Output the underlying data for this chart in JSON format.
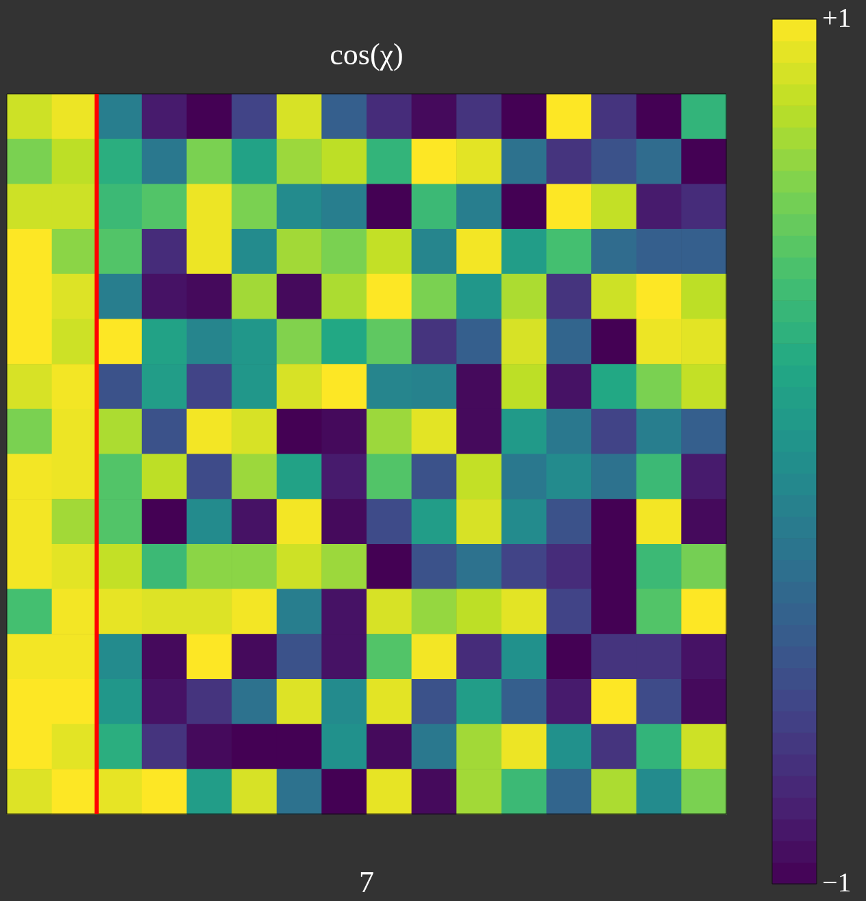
{
  "chart_data": {
    "type": "heatmap",
    "title": "cos(χ)",
    "xlabel": "7",
    "categories": [
      null,
      null,
      null,
      null,
      null,
      null,
      null,
      null,
      null,
      null,
      null,
      null,
      null,
      null,
      null,
      null
    ],
    "y_categories": [
      null,
      null,
      null,
      null,
      null,
      null,
      null,
      null,
      null,
      null,
      null,
      null,
      null,
      null,
      null,
      null
    ],
    "cells": [
      [
        0.85,
        0.95,
        -0.15,
        -0.85,
        -1,
        -0.6,
        0.88,
        -0.4,
        -0.75,
        -0.95,
        -0.7,
        -1,
        1,
        -0.7,
        -1,
        0.3
      ],
      [
        0.6,
        0.8,
        0.25,
        -0.2,
        0.6,
        0.15,
        0.7,
        0.8,
        0.3,
        1,
        0.92,
        -0.25,
        -0.7,
        -0.5,
        -0.3,
        -1
      ],
      [
        0.85,
        0.85,
        0.35,
        0.45,
        0.95,
        0.6,
        -0.05,
        -0.15,
        -1,
        0.35,
        -0.15,
        -1,
        1,
        0.82,
        -0.85,
        -0.75
      ],
      [
        1,
        0.65,
        0.45,
        -0.75,
        0.95,
        -0.05,
        0.72,
        0.6,
        0.82,
        -0.1,
        0.97,
        0.1,
        0.4,
        -0.3,
        -0.4,
        -0.4
      ],
      [
        1,
        0.9,
        -0.15,
        -0.9,
        -0.95,
        0.72,
        -0.95,
        0.75,
        1,
        0.6,
        0.05,
        0.75,
        -0.7,
        0.85,
        1,
        0.8
      ],
      [
        1,
        0.85,
        1,
        0.15,
        -0.1,
        0.05,
        0.62,
        0.2,
        0.5,
        -0.7,
        -0.4,
        0.88,
        -0.35,
        -1,
        0.95,
        0.92
      ],
      [
        0.88,
        0.97,
        -0.5,
        0.1,
        -0.6,
        0.05,
        0.88,
        1,
        -0.1,
        -0.12,
        -0.95,
        0.8,
        -0.9,
        0.2,
        0.6,
        0.82
      ],
      [
        0.6,
        0.95,
        0.75,
        -0.5,
        0.97,
        0.88,
        -1,
        -0.95,
        0.7,
        0.92,
        -0.95,
        0.08,
        -0.2,
        -0.6,
        -0.15,
        -0.4
      ],
      [
        0.97,
        0.95,
        0.45,
        0.8,
        -0.55,
        0.7,
        0.15,
        -0.85,
        0.45,
        -0.5,
        0.82,
        -0.2,
        -0.05,
        -0.25,
        0.35,
        -0.85
      ],
      [
        0.97,
        0.72,
        0.45,
        -1,
        -0.05,
        -0.9,
        0.97,
        -0.95,
        -0.55,
        0.1,
        0.88,
        -0.05,
        -0.5,
        -1,
        0.97,
        -0.95
      ],
      [
        0.97,
        0.92,
        0.82,
        0.35,
        0.65,
        0.65,
        0.85,
        0.7,
        -1,
        -0.5,
        -0.25,
        -0.6,
        -0.75,
        -1,
        0.35,
        0.58
      ],
      [
        0.4,
        0.97,
        0.93,
        0.9,
        0.9,
        0.97,
        -0.15,
        -0.9,
        0.88,
        0.68,
        0.8,
        0.92,
        -0.6,
        -1,
        0.45,
        1
      ],
      [
        0.97,
        0.97,
        -0.05,
        -0.95,
        1,
        -0.95,
        -0.5,
        -0.9,
        0.45,
        0.97,
        -0.75,
        0,
        -1,
        -0.7,
        -0.7,
        -0.9
      ],
      [
        1,
        1,
        0.05,
        -0.9,
        -0.7,
        -0.25,
        0.9,
        -0.05,
        0.92,
        -0.5,
        0.1,
        -0.4,
        -0.85,
        1,
        -0.55,
        -0.95
      ],
      [
        1,
        0.92,
        0.25,
        -0.7,
        -0.95,
        -1,
        -1,
        0,
        -0.95,
        -0.2,
        0.72,
        0.95,
        0,
        -0.7,
        0.3,
        0.85
      ],
      [
        0.9,
        1,
        0.93,
        1,
        0.1,
        0.88,
        -0.25,
        -1,
        0.93,
        -0.95,
        0.72,
        0.35,
        -0.35,
        0.75,
        -0.05,
        0.6
      ]
    ],
    "clim": [
      -1,
      1
    ],
    "cticks": [
      {
        "value": -1,
        "label": "−1"
      },
      {
        "value": 1,
        "label": "+1"
      }
    ],
    "tick_labels": false
  }
}
